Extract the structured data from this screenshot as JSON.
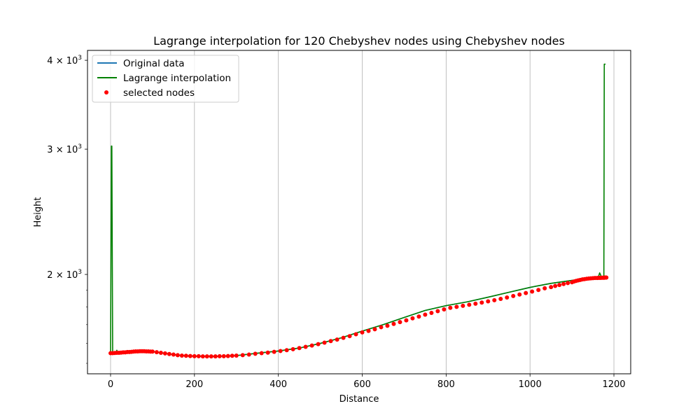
{
  "chart_data": {
    "type": "line",
    "title": "Lagrange interpolation for 120 Chebyshev nodes using Chebyshev nodes",
    "xlabel": "Distance",
    "ylabel": "Height",
    "xlim": [
      -55,
      1240
    ],
    "ylim": [
      1450,
      4130
    ],
    "yscale": "log",
    "grid": "x-only",
    "legend_position": "top-left",
    "x_ticks": [
      {
        "value": 0,
        "label": "0"
      },
      {
        "value": 200,
        "label": "200"
      },
      {
        "value": 400,
        "label": "400"
      },
      {
        "value": 600,
        "label": "600"
      },
      {
        "value": 800,
        "label": "800"
      },
      {
        "value": 1000,
        "label": "1000"
      },
      {
        "value": 1200,
        "label": "1200"
      }
    ],
    "y_ticks": [
      {
        "value": 2000,
        "base": "2",
        "exp": "3"
      },
      {
        "value": 3000,
        "base": "3",
        "exp": "3"
      },
      {
        "value": 4000,
        "base": "4",
        "exp": "3"
      }
    ],
    "series": [
      {
        "name": "Original data",
        "style": "line",
        "color": "#1f77b4",
        "x": [
          0,
          20,
          40,
          60,
          80,
          100,
          120,
          140,
          160,
          180,
          200,
          250,
          300,
          350,
          400,
          450,
          500,
          550,
          600,
          650,
          700,
          750,
          800,
          850,
          900,
          950,
          1000,
          1050,
          1100,
          1150,
          1180
        ],
        "y": [
          1550,
          1552,
          1556,
          1559,
          1560,
          1558,
          1552,
          1546,
          1540,
          1537,
          1535,
          1534,
          1538,
          1550,
          1561,
          1576,
          1600,
          1629,
          1665,
          1700,
          1740,
          1780,
          1808,
          1830,
          1858,
          1888,
          1918,
          1943,
          1962,
          1976,
          1980
        ]
      },
      {
        "name": "Lagrange interpolation",
        "style": "line",
        "color": "#008000",
        "x": [
          0,
          2,
          3,
          5,
          8,
          12,
          15,
          17,
          20,
          25,
          40,
          60,
          80,
          100,
          120,
          140,
          160,
          180,
          200,
          250,
          300,
          350,
          400,
          450,
          500,
          550,
          600,
          650,
          700,
          750,
          800,
          850,
          900,
          950,
          1000,
          1050,
          1100,
          1150,
          1160,
          1163,
          1166,
          1170,
          1174,
          1176,
          1177,
          1178,
          1179,
          1180
        ],
        "y": [
          1550,
          3030,
          3030,
          1550,
          1552,
          1551,
          1565,
          1551,
          1552,
          1553,
          1556,
          1559,
          1560,
          1558,
          1552,
          1546,
          1540,
          1537,
          1535,
          1534,
          1538,
          1550,
          1561,
          1576,
          1600,
          1629,
          1665,
          1700,
          1740,
          1780,
          1808,
          1830,
          1858,
          1888,
          1918,
          1943,
          1962,
          1976,
          1974,
          1985,
          2010,
          1986,
          1978,
          1980,
          3950,
          3950,
          3950,
          3950
        ]
      },
      {
        "name": "selected nodes",
        "style": "scatter",
        "color": "#ff0000",
        "x": [
          0,
          5,
          10,
          15,
          20,
          25,
          30,
          35,
          40,
          45,
          50,
          55,
          60,
          65,
          70,
          75,
          80,
          85,
          90,
          95,
          100,
          110,
          120,
          130,
          140,
          150,
          160,
          170,
          180,
          190,
          200,
          210,
          220,
          230,
          240,
          250,
          260,
          270,
          280,
          290,
          300,
          315,
          330,
          345,
          360,
          375,
          390,
          405,
          420,
          435,
          450,
          465,
          480,
          495,
          510,
          525,
          540,
          555,
          570,
          585,
          600,
          615,
          630,
          645,
          660,
          675,
          690,
          705,
          720,
          735,
          750,
          765,
          780,
          795,
          810,
          825,
          840,
          855,
          870,
          885,
          900,
          915,
          930,
          945,
          960,
          975,
          990,
          1005,
          1020,
          1035,
          1050,
          1060,
          1070,
          1080,
          1090,
          1100,
          1105,
          1110,
          1115,
          1120,
          1125,
          1130,
          1135,
          1140,
          1145,
          1150,
          1155,
          1160,
          1163,
          1166,
          1169,
          1172,
          1174,
          1176,
          1177,
          1178,
          1179,
          1180,
          1181,
          1182
        ],
        "y": [
          1550,
          1550,
          1551,
          1552,
          1552,
          1553,
          1554,
          1554,
          1556,
          1556,
          1557,
          1558,
          1559,
          1559,
          1560,
          1560,
          1560,
          1559,
          1559,
          1558,
          1558,
          1555,
          1552,
          1549,
          1546,
          1543,
          1540,
          1538,
          1537,
          1536,
          1535,
          1535,
          1534,
          1534,
          1534,
          1534,
          1535,
          1535,
          1536,
          1537,
          1538,
          1540,
          1543,
          1547,
          1550,
          1553,
          1557,
          1561,
          1565,
          1570,
          1576,
          1582,
          1589,
          1596,
          1604,
          1612,
          1620,
          1629,
          1638,
          1648,
          1658,
          1666,
          1675,
          1686,
          1694,
          1704,
          1714,
          1724,
          1735,
          1745,
          1756,
          1766,
          1776,
          1786,
          1795,
          1801,
          1807,
          1813,
          1819,
          1826,
          1833,
          1840,
          1848,
          1856,
          1865,
          1874,
          1883,
          1892,
          1902,
          1912,
          1920,
          1927,
          1933,
          1939,
          1945,
          1950,
          1955,
          1959,
          1962,
          1965,
          1968,
          1970,
          1972,
          1974,
          1975,
          1976,
          1977,
          1977,
          1978,
          1978,
          1978,
          1979,
          1979,
          1979,
          1979,
          1980,
          1980,
          1980,
          1980,
          1980
        ]
      }
    ]
  }
}
